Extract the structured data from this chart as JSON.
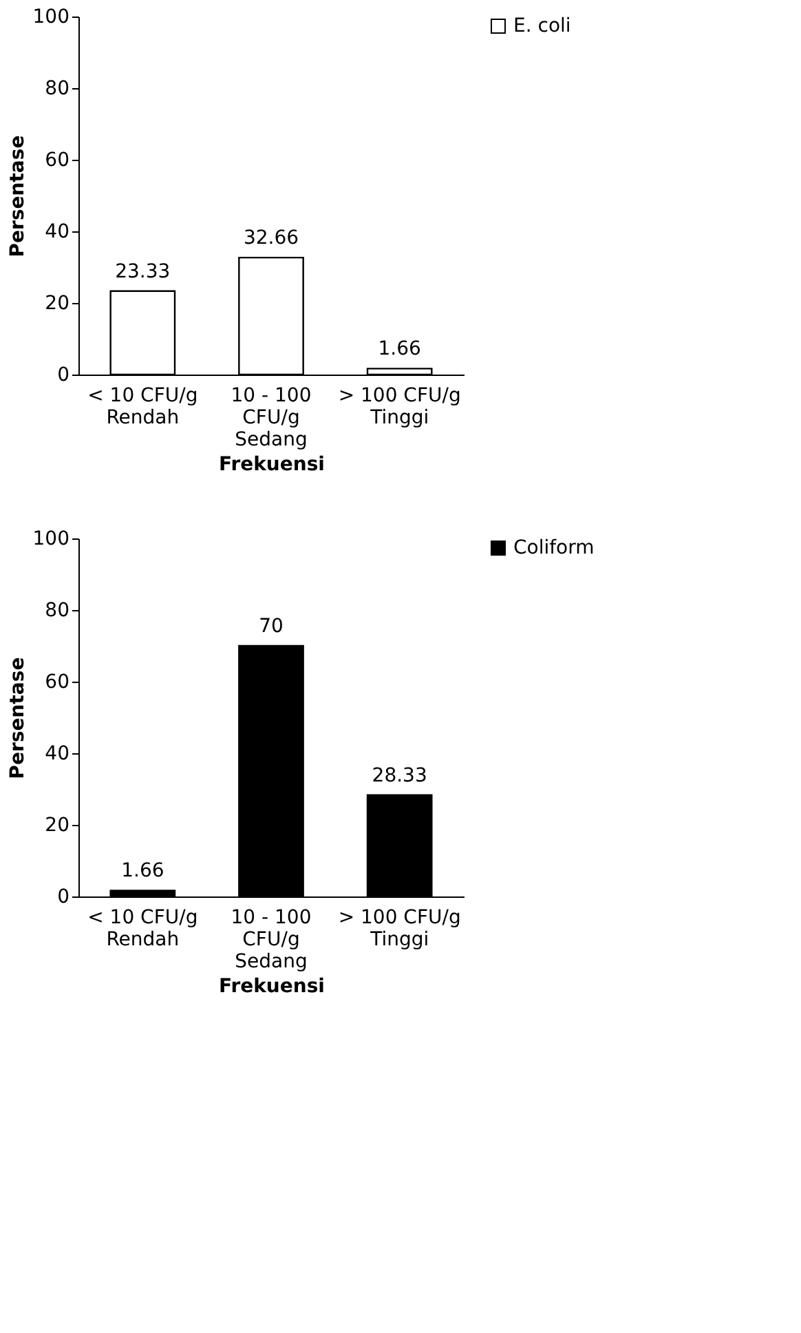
{
  "chart_data": [
    {
      "type": "bar",
      "categories": [
        "< 10 CFU/g\nRendah",
        "10 - 100\nCFU/g\nSedang",
        "> 100 CFU/g\nTinggi"
      ],
      "series": [
        {
          "name": "E. coli",
          "color": "#ffffff",
          "values": [
            23.33,
            32.66,
            1.66
          ]
        }
      ],
      "xlabel": "Frekuensi",
      "ylabel": "Persentase",
      "ylim": [
        0,
        100
      ],
      "yticks": [
        0,
        20,
        40,
        60,
        80,
        100
      ],
      "grid": false,
      "legend": "right",
      "data_labels": true
    },
    {
      "type": "bar",
      "categories": [
        "< 10 CFU/g\nRendah",
        "10 - 100\nCFU/g\nSedang",
        "> 100 CFU/g\nTinggi"
      ],
      "series": [
        {
          "name": "Coliform",
          "color": "#000000",
          "values": [
            1.66,
            70,
            28.33
          ]
        }
      ],
      "xlabel": "Frekuensi",
      "ylabel": "Persentase",
      "ylim": [
        0,
        100
      ],
      "yticks": [
        0,
        20,
        40,
        60,
        80,
        100
      ],
      "grid": false,
      "legend": "right",
      "data_labels": true
    }
  ]
}
